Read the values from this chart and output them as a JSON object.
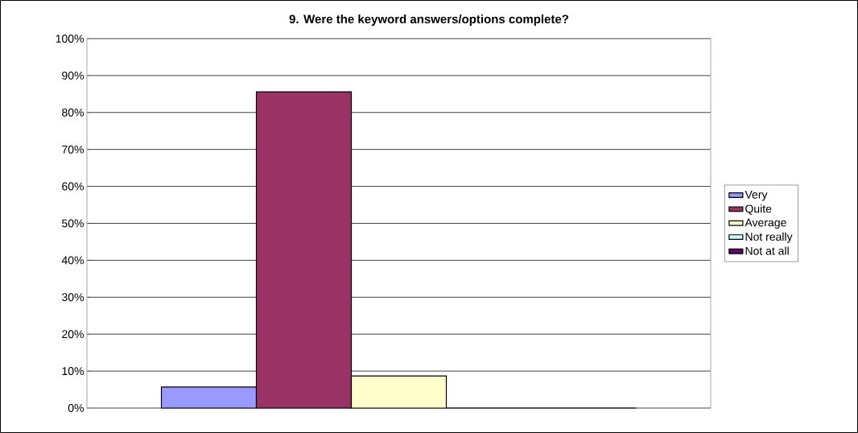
{
  "chart_data": {
    "type": "bar",
    "title": "9. Were the keyword answers/options complete?",
    "categories": [
      null
    ],
    "series": [
      {
        "name": "Very",
        "color": "#9999ff",
        "values": [
          5.7
        ]
      },
      {
        "name": "Quite",
        "color": "#993366",
        "values": [
          85.6
        ]
      },
      {
        "name": "Average",
        "color": "#ffffcc",
        "values": [
          8.7
        ]
      },
      {
        "name": "Not really",
        "color": "#ccffff",
        "values": [
          0
        ]
      },
      {
        "name": "Not at all",
        "color": "#660066",
        "values": [
          0
        ]
      }
    ],
    "ylim": [
      0,
      100
    ],
    "yticks": [
      {
        "value": 0,
        "label": "0%"
      },
      {
        "value": 10,
        "label": "10%"
      },
      {
        "value": 20,
        "label": "20%"
      },
      {
        "value": 30,
        "label": "30%"
      },
      {
        "value": 40,
        "label": "40%"
      },
      {
        "value": 50,
        "label": "50%"
      },
      {
        "value": 60,
        "label": "60%"
      },
      {
        "value": 70,
        "label": "70%"
      },
      {
        "value": 80,
        "label": "80%"
      },
      {
        "value": 90,
        "label": "90%"
      },
      {
        "value": 100,
        "label": "100%"
      }
    ],
    "grid": "y",
    "legend": "right"
  }
}
